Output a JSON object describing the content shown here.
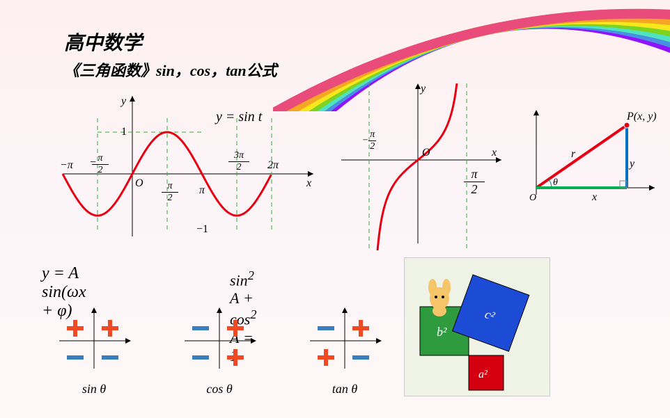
{
  "page": {
    "title": "高中数学",
    "subtitle": "《三角函数》sin，cos，tan公式"
  },
  "rainbow": {
    "colors": [
      "#e94b7a",
      "#f5a623",
      "#f8e71c",
      "#7ed321",
      "#4a90e2",
      "#50e3c2",
      "#9013fe"
    ],
    "strokeWidth": 14
  },
  "sineGraph": {
    "title": "y = sin t",
    "xLabels": [
      "−π",
      "−π/2",
      "O",
      "π/2",
      "π",
      "3π/2",
      "2π"
    ],
    "yLabels": [
      "1",
      "−1"
    ],
    "lineColor": "#e60012",
    "dashColor": "#2eb135",
    "axisColor": "#000000",
    "yAxisLabel": "y",
    "xAxisLabel": "x"
  },
  "tanGraph": {
    "labels": {
      "neg": "−π/2",
      "pos": "π/2",
      "origin": "O"
    },
    "lineColor": "#e60012",
    "dashColor": "#2eb135",
    "yAxisLabel": "y",
    "xAxisLabel": "x"
  },
  "triangle": {
    "pointLabel": "P(x, y)",
    "hypLabel": "r",
    "xLabel": "x",
    "yLabel": "y",
    "angleLabel": "θ",
    "originLabel": "O",
    "hypColor": "#e60012",
    "baseColor": "#00b050",
    "vertColor": "#0070c0"
  },
  "formulas": {
    "f1": "y = A sin(ωx + φ)",
    "f2": "sin² A + cos² A = 1"
  },
  "signCharts": [
    {
      "label": "sin θ",
      "signs": [
        "+",
        "+",
        "−",
        "−"
      ],
      "plusColor": "#f04a24",
      "minusColor": "#3a7ebf"
    },
    {
      "label": "cos θ",
      "signs": [
        "−",
        "+",
        "−",
        "+"
      ],
      "plusColor": "#f04a24",
      "minusColor": "#3a7ebf"
    },
    {
      "label": "tan θ",
      "signs": [
        "−",
        "+",
        "+",
        "−"
      ],
      "plusColor": "#f04a24",
      "minusColor": "#3a7ebf"
    }
  ],
  "pythagoras": {
    "background": "#eef3e5",
    "squares": [
      {
        "label": "a²",
        "color": "#d4000f",
        "size": 50
      },
      {
        "label": "b²",
        "color": "#2e9b3e",
        "size": 70
      },
      {
        "label": "c²",
        "color": "#1c4bd6",
        "size": 86
      }
    ]
  }
}
